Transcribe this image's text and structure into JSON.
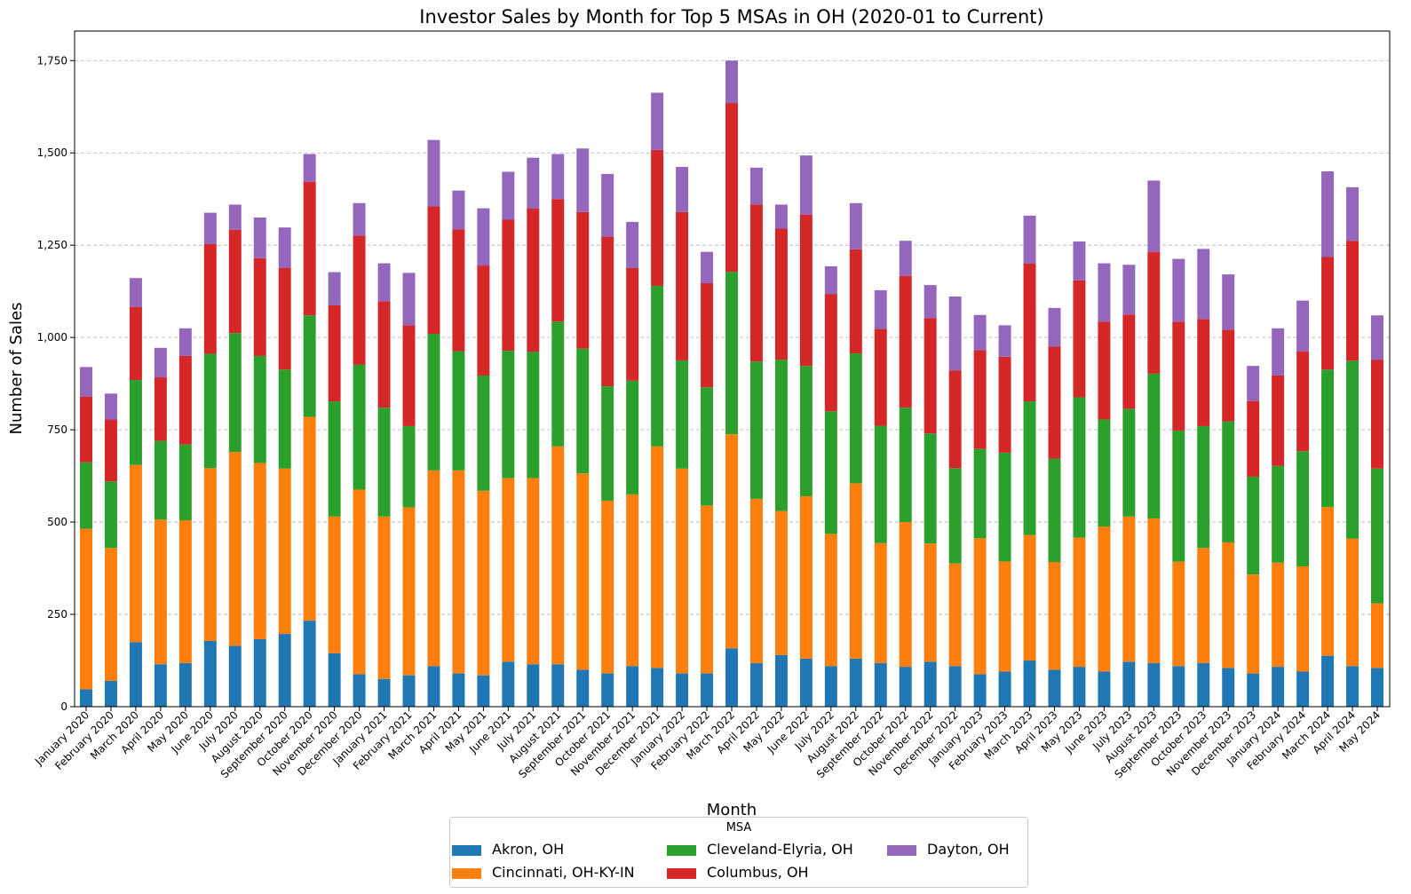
{
  "chart_data": {
    "type": "bar",
    "stacked": true,
    "title": "Investor Sales by Month for Top 5 MSAs in OH (2020-01 to Current)",
    "xlabel": "Month",
    "ylabel": "Number of Sales",
    "ylim": [
      0,
      1830
    ],
    "yticks": [
      0,
      250,
      500,
      750,
      1000,
      1250,
      1500,
      1750
    ],
    "ytick_labels": [
      "0",
      "250",
      "500",
      "750",
      "1,000",
      "1,250",
      "1,500",
      "1,750"
    ],
    "grid": "horizontal-dashed",
    "legend_title": "MSA",
    "legend_position": "bottom-center",
    "categories": [
      "January 2020",
      "February 2020",
      "March 2020",
      "April 2020",
      "May 2020",
      "June 2020",
      "July 2020",
      "August 2020",
      "September 2020",
      "October 2020",
      "November 2020",
      "December 2020",
      "January 2021",
      "February 2021",
      "March 2021",
      "April 2021",
      "May 2021",
      "June 2021",
      "July 2021",
      "August 2021",
      "September 2021",
      "October 2021",
      "November 2021",
      "December 2021",
      "January 2022",
      "February 2022",
      "March 2022",
      "April 2022",
      "May 2022",
      "June 2022",
      "July 2022",
      "August 2022",
      "September 2022",
      "October 2022",
      "November 2022",
      "December 2022",
      "January 2023",
      "February 2023",
      "March 2023",
      "April 2023",
      "May 2023",
      "June 2023",
      "July 2023",
      "August 2023",
      "September 2023",
      "October 2023",
      "November 2023",
      "December 2023",
      "January 2024",
      "February 2024",
      "March 2024",
      "April 2024",
      "May 2024"
    ],
    "series": [
      {
        "name": "Akron, OH",
        "color": "#1f77b4",
        "values": [
          47,
          70,
          175,
          115,
          118,
          178,
          165,
          183,
          197,
          233,
          145,
          88,
          75,
          85,
          110,
          90,
          85,
          122,
          115,
          115,
          100,
          90,
          110,
          105,
          90,
          90,
          158,
          118,
          140,
          130,
          110,
          130,
          118,
          108,
          122,
          110,
          88,
          95,
          125,
          100,
          108,
          95,
          122,
          118,
          110,
          118,
          105,
          90,
          108,
          95,
          138,
          110,
          105
        ]
      },
      {
        "name": "Cincinnati, OH-KY-IN",
        "color": "#ff7f0e",
        "values": [
          435,
          360,
          480,
          392,
          387,
          468,
          525,
          477,
          448,
          552,
          370,
          500,
          440,
          455,
          530,
          550,
          500,
          497,
          504,
          590,
          532,
          468,
          465,
          600,
          555,
          455,
          580,
          445,
          390,
          440,
          358,
          475,
          325,
          392,
          320,
          278,
          368,
          298,
          340,
          292,
          350,
          393,
          393,
          392,
          283,
          312,
          340,
          268,
          282,
          285,
          403,
          345,
          175
        ]
      },
      {
        "name": "Cleveland-Elyria, OH",
        "color": "#2ca02c",
        "values": [
          180,
          180,
          230,
          213,
          205,
          310,
          322,
          290,
          268,
          275,
          312,
          338,
          295,
          220,
          370,
          323,
          312,
          345,
          342,
          338,
          338,
          310,
          308,
          435,
          293,
          320,
          440,
          372,
          410,
          353,
          332,
          352,
          318,
          310,
          298,
          258,
          242,
          295,
          362,
          280,
          380,
          290,
          292,
          392,
          355,
          330,
          328,
          265,
          262,
          312,
          372,
          482,
          365
        ]
      },
      {
        "name": "Columbus, OH",
        "color": "#d62728",
        "values": [
          178,
          168,
          198,
          172,
          240,
          297,
          280,
          265,
          275,
          362,
          260,
          350,
          288,
          273,
          345,
          330,
          298,
          355,
          388,
          332,
          370,
          405,
          305,
          368,
          402,
          282,
          457,
          425,
          355,
          410,
          318,
          282,
          262,
          357,
          312,
          265,
          268,
          260,
          373,
          303,
          317,
          265,
          255,
          330,
          295,
          290,
          248,
          205,
          245,
          270,
          305,
          325,
          295
        ]
      },
      {
        "name": "Dayton, OH",
        "color": "#9467bd",
        "values": [
          80,
          70,
          78,
          80,
          75,
          85,
          68,
          110,
          110,
          75,
          90,
          88,
          103,
          142,
          180,
          105,
          155,
          130,
          138,
          122,
          172,
          170,
          125,
          155,
          122,
          85,
          115,
          100,
          65,
          160,
          75,
          125,
          105,
          95,
          90,
          200,
          95,
          85,
          130,
          105,
          105,
          158,
          135,
          193,
          170,
          190,
          150,
          95,
          128,
          138,
          232,
          145,
          120
        ]
      }
    ]
  }
}
